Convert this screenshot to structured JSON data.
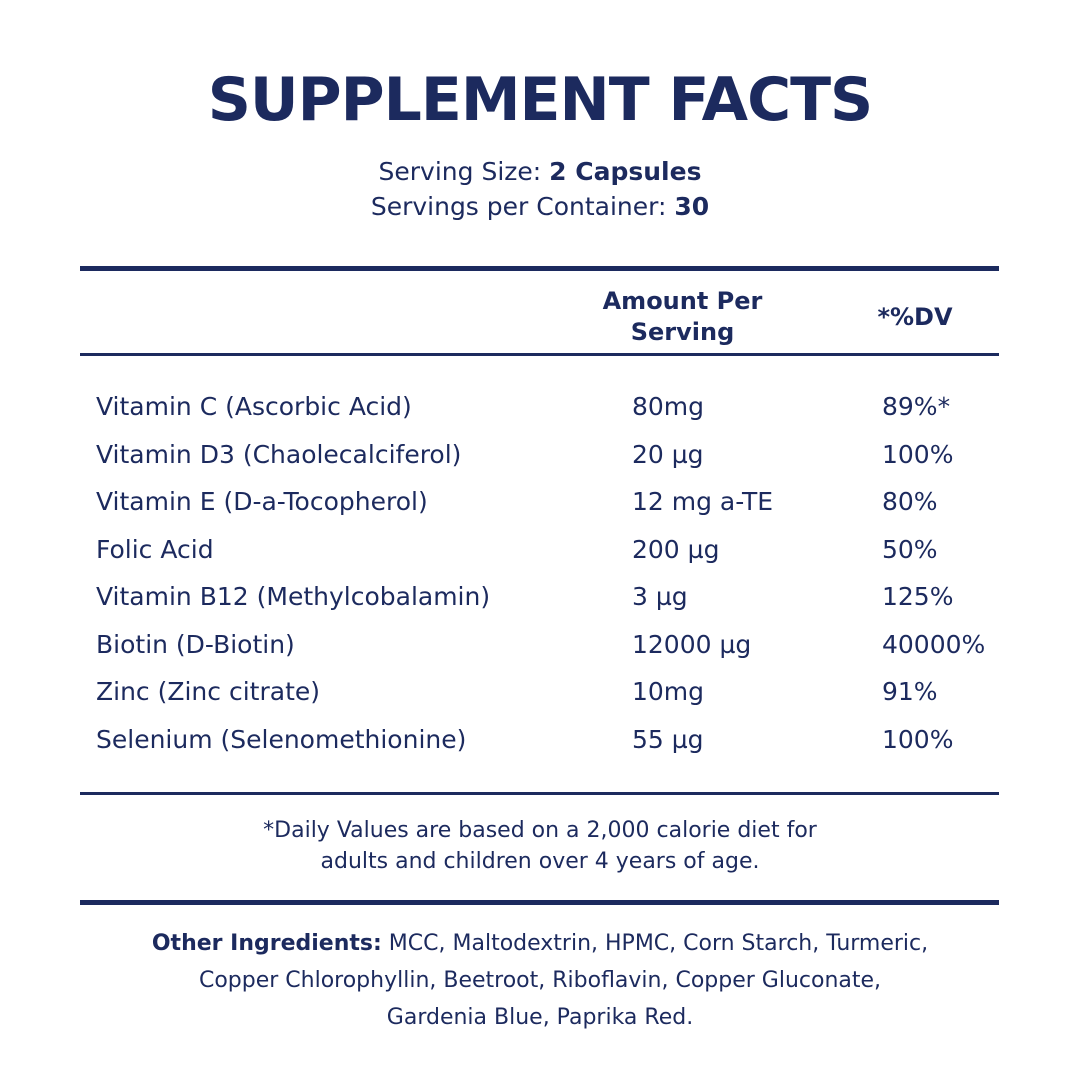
{
  "title": "SUPPLEMENT FACTS",
  "serving": {
    "size_label": "Serving Size: ",
    "size_value": "2 Capsules",
    "per_container_label": "Servings per Container: ",
    "per_container_value": "30"
  },
  "table": {
    "header_amount_line1": "Amount Per",
    "header_amount_line2": "Serving",
    "header_dv": "*%DV",
    "rows": [
      {
        "name": "Vitamin C (Ascorbic Acid)",
        "amount": "80mg",
        "dv": "89%*"
      },
      {
        "name": "Vitamin D3 (Chaolecalciferol)",
        "amount": "20 µg",
        "dv": "100%"
      },
      {
        "name": "Vitamin E (D-a-Tocopherol)",
        "amount": "12 mg a-TE",
        "dv": "80%"
      },
      {
        "name": "Folic Acid",
        "amount": "200 µg",
        "dv": "50%"
      },
      {
        "name": "Vitamin B12 (Methylcobalamin)",
        "amount": "3 µg",
        "dv": "125%"
      },
      {
        "name": "Biotin (D-Biotin)",
        "amount": "12000 µg",
        "dv": "40000%"
      },
      {
        "name": "Zinc (Zinc citrate)",
        "amount": "10mg",
        "dv": "91%"
      },
      {
        "name": "Selenium (Selenomethionine)",
        "amount": "55 µg",
        "dv": "100%"
      }
    ]
  },
  "footnote": {
    "line1": "*Daily Values are based on a 2,000 calorie diet for",
    "line2": "adults and children over 4 years of age."
  },
  "other_ingredients": {
    "label": "Other Ingredients:",
    "text": " MCC, Maltodextrin, HPMC, Corn Starch, Turmeric, Copper Chlorophyllin, Beetroot, Riboflavin, Copper Gluconate, Gardenia Blue, Paprika Red."
  },
  "colors": {
    "text": "#1c2a5e",
    "rules": "#1c2a5e",
    "background": "#ffffff"
  }
}
